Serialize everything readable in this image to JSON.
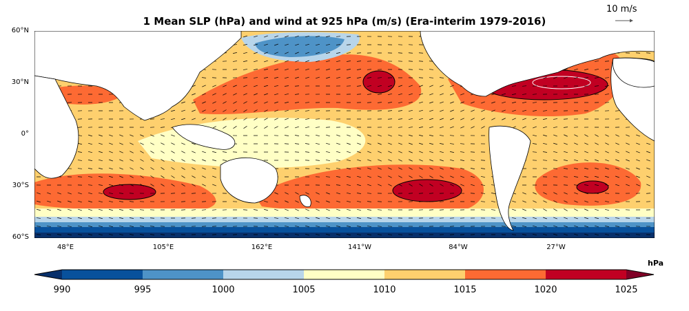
{
  "title": "1 Mean SLP (hPa) and wind at 925 hPa (m/s) (Era-interim 1979-2016)",
  "reference_vector": {
    "label": "10 m/s",
    "speed_ms": 10
  },
  "map": {
    "projection": "equirectangular",
    "lon_range": [
      20,
      380
    ],
    "lat_range": [
      -60,
      60
    ],
    "lat_labels": [
      "60°N",
      "30°N",
      "0°",
      "30°S",
      "60°S"
    ],
    "lat_values": [
      60,
      30,
      0,
      -30,
      -60
    ],
    "lon_labels": [
      "48°E",
      "105°E",
      "162°E",
      "141°W",
      "84°W",
      "27°W"
    ],
    "lon_values": [
      48,
      105,
      162,
      219,
      276,
      333
    ]
  },
  "colorbar": {
    "unit": "hPa",
    "ticks": [
      "990",
      "995",
      "1000",
      "1005",
      "1010",
      "1015",
      "1020",
      "1025"
    ],
    "levels": [
      990,
      995,
      1000,
      1005,
      1010,
      1015,
      1020,
      1025
    ],
    "colors": [
      "#08306b",
      "#08519c",
      "#4e93c7",
      "#b8d5ea",
      "#ffffc5",
      "#fed06e",
      "#fd6a33",
      "#c10022",
      "#800026"
    ],
    "extend": "both"
  },
  "colors": {
    "land": "#ffffff",
    "coast": "#000000",
    "arrows": "#000000"
  }
}
